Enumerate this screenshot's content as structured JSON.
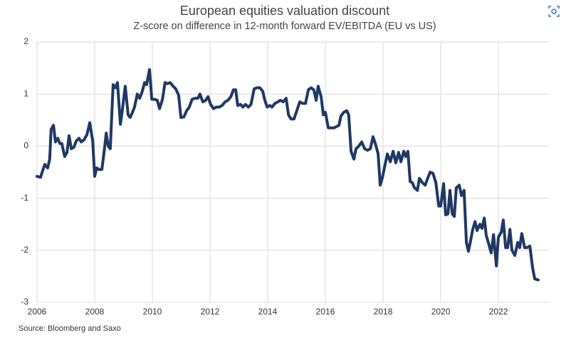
{
  "chart_data": {
    "type": "line",
    "title": "European equities valuation discount",
    "subtitle": "Z-score on difference in 12-month forward EV/EBITDA (EU vs US)",
    "source": "Source: Bloomberg and Saxo",
    "grid": true,
    "xlim": [
      2006,
      2023.9
    ],
    "xticks": [
      2006,
      2008,
      2010,
      2012,
      2014,
      2016,
      2018,
      2020,
      2022
    ],
    "ylim": [
      -3,
      2
    ],
    "yticks": [
      2,
      1,
      0,
      -1,
      -2,
      -3
    ],
    "x": [
      2006.0,
      2006.12,
      2006.27,
      2006.37,
      2006.44,
      2006.49,
      2006.57,
      2006.64,
      2006.72,
      2006.79,
      2006.86,
      2006.96,
      2007.04,
      2007.11,
      2007.19,
      2007.28,
      2007.36,
      2007.46,
      2007.53,
      2007.63,
      2007.73,
      2007.83,
      2007.93,
      2008.0,
      2008.07,
      2008.15,
      2008.25,
      2008.35,
      2008.4,
      2008.47,
      2008.54,
      2008.64,
      2008.72,
      2008.79,
      2008.89,
      2008.96,
      2009.06,
      2009.16,
      2009.23,
      2009.31,
      2009.38,
      2009.48,
      2009.56,
      2009.65,
      2009.73,
      2009.8,
      2009.9,
      2009.98,
      2010.07,
      2010.17,
      2010.25,
      2010.35,
      2010.44,
      2010.52,
      2010.62,
      2010.72,
      2010.81,
      2010.91,
      2010.99,
      2011.09,
      2011.19,
      2011.28,
      2011.38,
      2011.48,
      2011.58,
      2011.65,
      2011.75,
      2011.85,
      2011.93,
      2012.02,
      2012.12,
      2012.22,
      2012.32,
      2012.42,
      2012.52,
      2012.62,
      2012.72,
      2012.81,
      2012.89,
      2012.96,
      2013.06,
      2013.14,
      2013.23,
      2013.33,
      2013.42,
      2013.53,
      2013.63,
      2013.73,
      2013.83,
      2013.9,
      2013.98,
      2014.07,
      2014.15,
      2014.25,
      2014.35,
      2014.44,
      2014.54,
      2014.64,
      2014.72,
      2014.81,
      2014.91,
      2015.01,
      2015.11,
      2015.21,
      2015.31,
      2015.41,
      2015.51,
      2015.6,
      2015.68,
      2015.75,
      2015.85,
      2015.93,
      2016.0,
      2016.1,
      2016.2,
      2016.3,
      2016.4,
      2016.47,
      2016.54,
      2016.64,
      2016.74,
      2016.81,
      2016.89,
      2016.99,
      2017.06,
      2017.16,
      2017.26,
      2017.36,
      2017.46,
      2017.56,
      2017.65,
      2017.73,
      2017.83,
      2017.9,
      2017.98,
      2018.07,
      2018.15,
      2018.25,
      2018.35,
      2018.44,
      2018.54,
      2018.62,
      2018.72,
      2018.79,
      2018.86,
      2018.94,
      2019.01,
      2019.09,
      2019.19,
      2019.26,
      2019.36,
      2019.46,
      2019.56,
      2019.63,
      2019.73,
      2019.83,
      2019.93,
      2020.0,
      2020.1,
      2020.17,
      2020.25,
      2020.32,
      2020.4,
      2020.47,
      2020.54,
      2020.64,
      2020.72,
      2020.81,
      2020.89,
      2020.96,
      2021.04,
      2021.11,
      2021.19,
      2021.26,
      2021.36,
      2021.43,
      2021.51,
      2021.58,
      2021.65,
      2021.75,
      2021.83,
      2021.93,
      2022.0,
      2022.1,
      2022.17,
      2022.25,
      2022.32,
      2022.4,
      2022.47,
      2022.57,
      2022.67,
      2022.74,
      2022.81,
      2022.91,
      2022.99,
      2023.09,
      2023.19,
      2023.26,
      2023.38
    ],
    "series": [
      {
        "color": "#1f3864",
        "values": [
          -0.58,
          -0.6,
          -0.35,
          -0.42,
          -0.25,
          0.32,
          0.4,
          0.08,
          0.15,
          0.05,
          0.05,
          -0.2,
          -0.12,
          0.2,
          -0.05,
          -0.02,
          0.1,
          0.15,
          0.08,
          0.12,
          0.22,
          0.45,
          0.1,
          -0.58,
          -0.42,
          -0.45,
          -0.45,
          0.0,
          0.25,
          0.0,
          -0.05,
          1.18,
          1.12,
          1.22,
          0.42,
          0.7,
          1.15,
          0.6,
          0.55,
          0.65,
          0.75,
          1.0,
          0.92,
          1.05,
          1.22,
          1.18,
          1.47,
          0.9,
          0.9,
          0.88,
          0.72,
          0.9,
          1.22,
          1.2,
          1.22,
          1.15,
          1.1,
          0.98,
          0.55,
          0.56,
          0.68,
          0.75,
          0.9,
          0.92,
          0.92,
          1.0,
          0.85,
          0.88,
          0.95,
          0.8,
          0.72,
          0.75,
          0.75,
          0.78,
          0.85,
          0.88,
          0.95,
          1.08,
          1.08,
          0.78,
          0.8,
          0.75,
          0.8,
          0.75,
          0.8,
          1.1,
          1.12,
          1.12,
          1.05,
          0.88,
          0.75,
          0.78,
          0.75,
          0.82,
          0.85,
          0.88,
          0.85,
          0.92,
          0.6,
          0.52,
          0.52,
          0.68,
          0.85,
          0.82,
          0.82,
          1.08,
          1.12,
          1.08,
          0.88,
          1.15,
          0.95,
          0.6,
          0.65,
          0.35,
          0.35,
          0.35,
          0.38,
          0.4,
          0.58,
          0.65,
          0.68,
          0.6,
          -0.1,
          -0.25,
          -0.05,
          0.0,
          0.08,
          -0.05,
          -0.08,
          -0.05,
          0.18,
          0.05,
          -0.15,
          -0.75,
          -0.6,
          -0.35,
          -0.15,
          -0.3,
          -0.1,
          -0.32,
          -0.12,
          -0.3,
          -0.1,
          -0.2,
          -0.1,
          -0.68,
          -0.7,
          -0.8,
          -0.85,
          -0.62,
          -0.7,
          -0.75,
          -0.6,
          -0.5,
          -0.52,
          -0.7,
          -1.15,
          -1.15,
          -0.72,
          -1.32,
          -1.3,
          -0.85,
          -1.3,
          -1.35,
          -0.8,
          -0.75,
          -0.95,
          -0.85,
          -1.85,
          -2.02,
          -1.8,
          -1.6,
          -1.45,
          -1.62,
          -1.5,
          -1.58,
          -1.38,
          -1.72,
          -1.85,
          -2.05,
          -1.7,
          -2.3,
          -1.75,
          -1.65,
          -1.42,
          -1.95,
          -1.95,
          -1.6,
          -2.0,
          -2.1,
          -1.85,
          -1.95,
          -1.68,
          -1.95,
          -1.95,
          -1.92,
          -2.35,
          -2.55,
          -2.57
        ]
      }
    ]
  }
}
